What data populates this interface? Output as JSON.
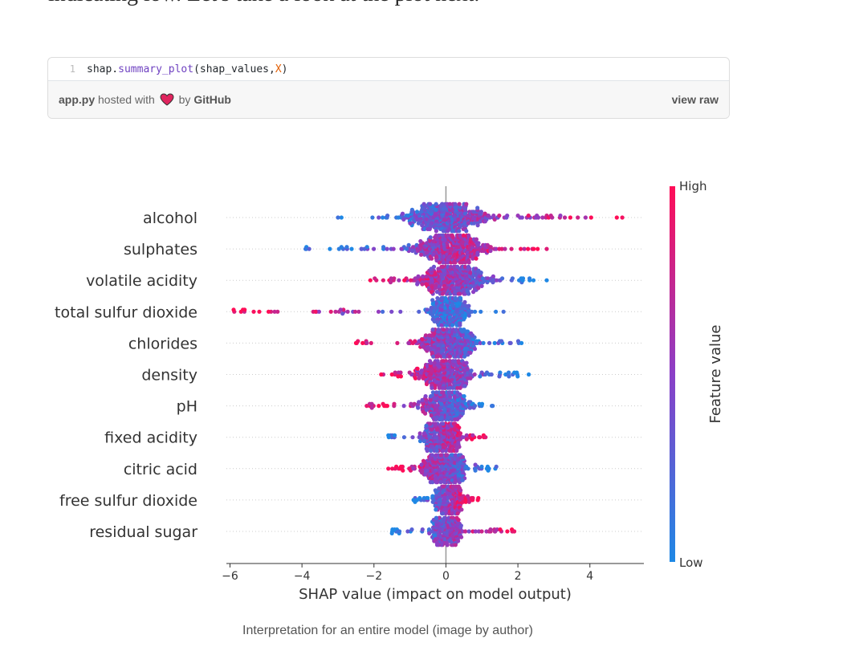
{
  "intro_text": "indicating low. Let's take a look at the plot next.",
  "gist": {
    "line_number": "1",
    "code": {
      "obj": "shap.",
      "func": "summary_plot",
      "open": "(shap_values, ",
      "arg": "X",
      "close": ")"
    },
    "filename": "app.py",
    "hosted_with": "hosted with",
    "by": "by",
    "host": "GitHub",
    "view_raw": "view raw"
  },
  "chart_data": {
    "type": "scatter",
    "subtype": "shap-beeswarm",
    "xlabel": "SHAP value (impact on model output)",
    "xlim": [
      -6.1,
      5.5
    ],
    "xticks": [
      -6,
      -4,
      -2,
      0,
      2,
      4
    ],
    "xtick_labels": [
      "−6",
      "−4",
      "−2",
      "0",
      "2",
      "4"
    ],
    "colorbar": {
      "label": "Feature value",
      "high_label": "High",
      "low_label": "Low",
      "high_color": "#ff0d57",
      "low_color": "#1e88e5"
    },
    "features": [
      {
        "name": "alcohol",
        "min": -3.0,
        "max": 4.9,
        "center": 0.0,
        "spread": 1.0,
        "high_side": "right"
      },
      {
        "name": "sulphates",
        "min": -3.9,
        "max": 2.8,
        "center": 0.2,
        "spread": 0.9,
        "high_side": "right"
      },
      {
        "name": "volatile acidity",
        "min": -2.1,
        "max": 2.8,
        "center": 0.2,
        "spread": 0.8,
        "high_side": "left"
      },
      {
        "name": "total sulfur dioxide",
        "min": -5.9,
        "max": 1.6,
        "center": 0.1,
        "spread": 0.4,
        "high_side": "left"
      },
      {
        "name": "chlorides",
        "min": -2.5,
        "max": 2.1,
        "center": 0.1,
        "spread": 0.6,
        "high_side": "left"
      },
      {
        "name": "density",
        "min": -1.8,
        "max": 2.3,
        "center": 0.0,
        "spread": 0.6,
        "high_side": "left"
      },
      {
        "name": "pH",
        "min": -2.2,
        "max": 1.3,
        "center": 0.0,
        "spread": 0.5,
        "high_side": "left"
      },
      {
        "name": "fixed acidity",
        "min": -1.6,
        "max": 1.1,
        "center": -0.1,
        "spread": 0.4,
        "high_side": "right"
      },
      {
        "name": "citric acid",
        "min": -1.6,
        "max": 1.4,
        "center": 0.0,
        "spread": 0.5,
        "high_side": "left"
      },
      {
        "name": "free sulfur dioxide",
        "min": -0.9,
        "max": 0.9,
        "center": 0.1,
        "spread": 0.3,
        "high_side": "right"
      },
      {
        "name": "residual sugar",
        "min": -1.5,
        "max": 1.9,
        "center": 0.0,
        "spread": 0.3,
        "high_side": "right"
      }
    ]
  },
  "caption": "Interpretation for an entire model (image by author)"
}
